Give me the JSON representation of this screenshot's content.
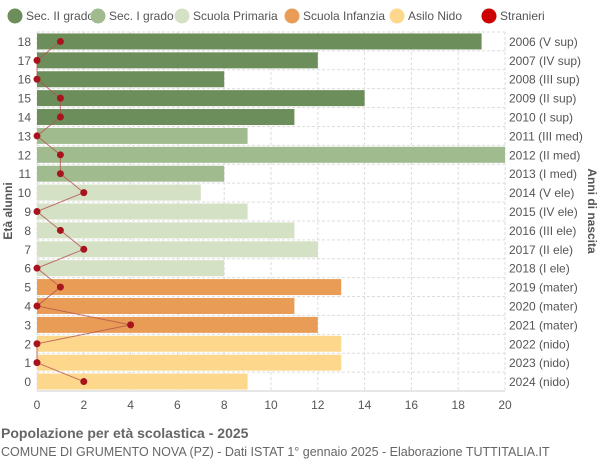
{
  "chart_data": {
    "type": "bar",
    "orientation": "horizontal",
    "title": "Popolazione per età scolastica - 2025",
    "subtitle": "COMUNE DI GRUMENTO NOVA (PZ) - Dati ISTAT 1° gennaio 2025 - Elaborazione TUTTITALIA.IT",
    "ylabel": "Età alunni",
    "ylabel_right": "Anni di nascita",
    "xlim": [
      0,
      20
    ],
    "xticks": [
      0,
      2,
      4,
      6,
      8,
      10,
      12,
      14,
      16,
      18,
      20
    ],
    "grid": true,
    "legend_position": "top",
    "legend": [
      {
        "name": "Sec. II grado",
        "color": "#6b8e5a"
      },
      {
        "name": "Sec. I grado",
        "color": "#a0bc8f"
      },
      {
        "name": "Scuola Primaria",
        "color": "#d4e1c4"
      },
      {
        "name": "Scuola Infanzia",
        "color": "#e99c56"
      },
      {
        "name": "Asilo Nido",
        "color": "#fdd88c"
      },
      {
        "name": "Stranieri",
        "color": "#cc0000"
      }
    ],
    "ages": [
      18,
      17,
      16,
      15,
      14,
      13,
      12,
      11,
      10,
      9,
      8,
      7,
      6,
      5,
      4,
      3,
      2,
      1,
      0
    ],
    "birth_labels": [
      "2006 (V sup)",
      "2007 (IV sup)",
      "2008 (III sup)",
      "2009 (II sup)",
      "2010 (I sup)",
      "2011 (III med)",
      "2012 (II med)",
      "2013 (I med)",
      "2014 (V ele)",
      "2015 (IV ele)",
      "2016 (III ele)",
      "2017 (II ele)",
      "2018 (I ele)",
      "2019 (mater)",
      "2020 (mater)",
      "2021 (mater)",
      "2022 (nido)",
      "2023 (nido)",
      "2024 (nido)"
    ],
    "school_level": [
      0,
      0,
      0,
      0,
      0,
      1,
      1,
      1,
      2,
      2,
      2,
      2,
      2,
      3,
      3,
      3,
      4,
      4,
      4
    ],
    "values": [
      19,
      12,
      8,
      14,
      11,
      9,
      20,
      8,
      7,
      9,
      11,
      12,
      8,
      13,
      11,
      12,
      13,
      13,
      9
    ],
    "stranieri": [
      1,
      0,
      0,
      1,
      1,
      0,
      1,
      1,
      2,
      0,
      1,
      2,
      0,
      1,
      0,
      4,
      0,
      0,
      2
    ],
    "stranieri_color": "#a8141e"
  }
}
